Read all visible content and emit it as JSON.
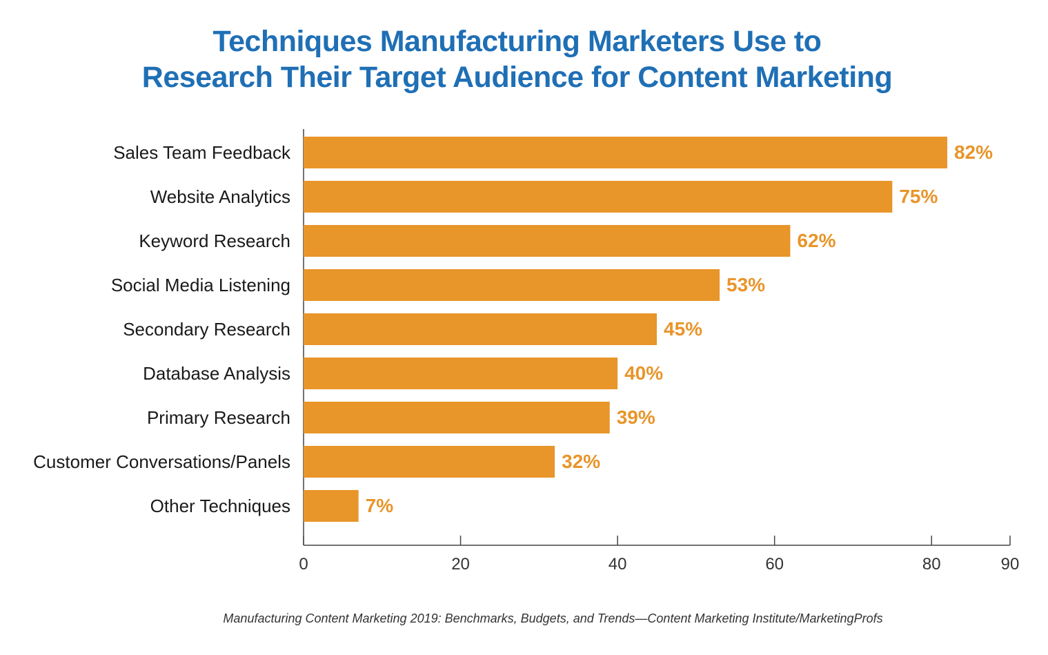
{
  "chart_data": {
    "type": "bar",
    "orientation": "horizontal",
    "title_lines": [
      "Techniques Manufacturing Marketers Use to",
      "Research Their Target Audience for Content Marketing"
    ],
    "categories": [
      "Sales Team Feedback",
      "Website Analytics",
      "Keyword Research",
      "Social Media Listening",
      "Secondary Research",
      "Database Analysis",
      "Primary Research",
      "Customer Conversations/Panels",
      "Other Techniques"
    ],
    "values": [
      82,
      75,
      62,
      53,
      45,
      40,
      39,
      32,
      7
    ],
    "value_labels": [
      "82%",
      "75%",
      "62%",
      "53%",
      "45%",
      "40%",
      "39%",
      "32%",
      "7%"
    ],
    "xlim": [
      0,
      90
    ],
    "x_ticks": [
      0,
      20,
      40,
      60,
      80,
      90
    ],
    "grid": false,
    "legend": "none",
    "bar_color": "#e8952a",
    "label_color": "#e8952a",
    "title_color": "#1f6fb5",
    "source": "Manufacturing Content Marketing 2019: Benchmarks, Budgets, and Trends—Content Marketing Institute/MarketingProfs"
  }
}
